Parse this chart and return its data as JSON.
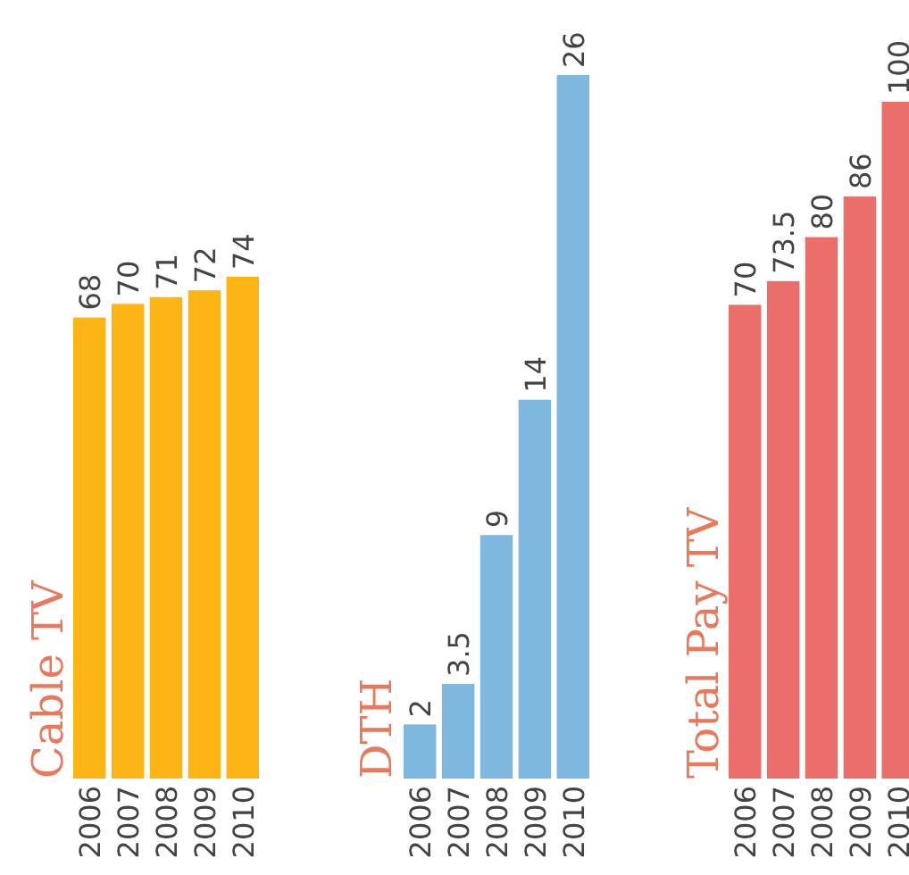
{
  "chart_data": [
    {
      "type": "bar",
      "title": "Cable TV",
      "categories": [
        "2006",
        "2007",
        "2008",
        "2009",
        "2010"
      ],
      "values": [
        68,
        70,
        71,
        72,
        74
      ],
      "color": "#fdb515",
      "data_labels": true
    },
    {
      "type": "bar",
      "title": "DTH",
      "categories": [
        "2006",
        "2007",
        "2008",
        "2009",
        "2010"
      ],
      "values": [
        2,
        3.5,
        9,
        14,
        26
      ],
      "color": "#7fb8de",
      "data_labels": true
    },
    {
      "type": "bar",
      "title": "Total Pay TV",
      "categories": [
        "2006",
        "2007",
        "2008",
        "2009",
        "2010"
      ],
      "values": [
        70,
        73.5,
        80,
        86,
        100
      ],
      "color": "#ea6f6b",
      "data_labels": true
    }
  ]
}
